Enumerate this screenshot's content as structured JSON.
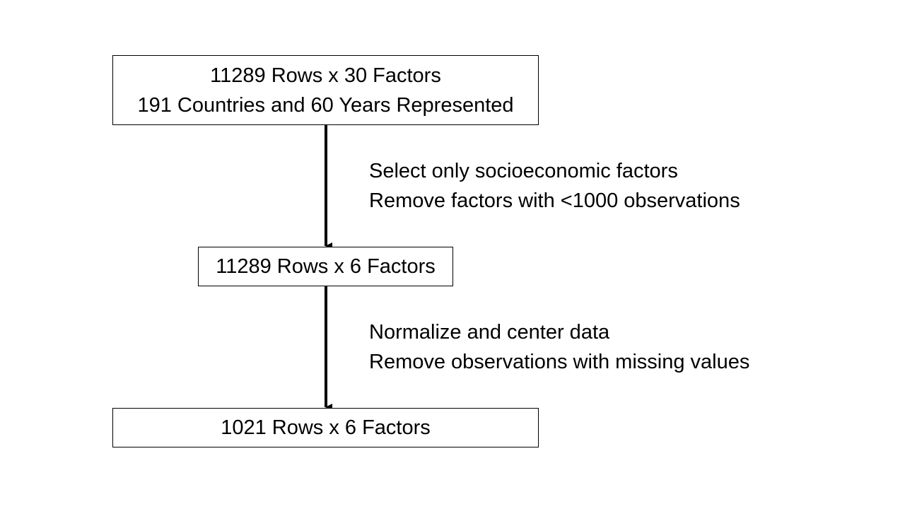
{
  "flowchart": {
    "boxes": [
      {
        "lines": [
          "11289 Rows x 30 Factors",
          "191 Countries and 60 Years Represented"
        ]
      },
      {
        "lines": [
          "11289 Rows x 6 Factors"
        ]
      },
      {
        "lines": [
          "1021 Rows x 6 Factors"
        ]
      }
    ],
    "steps": [
      {
        "lines": [
          "Select only socioeconomic factors",
          "Remove factors with <1000 observations"
        ]
      },
      {
        "lines": [
          "Normalize and center data",
          "Remove observations with missing values"
        ]
      }
    ],
    "colors": {
      "stroke": "#000000",
      "background": "#ffffff",
      "text": "#000000"
    }
  }
}
